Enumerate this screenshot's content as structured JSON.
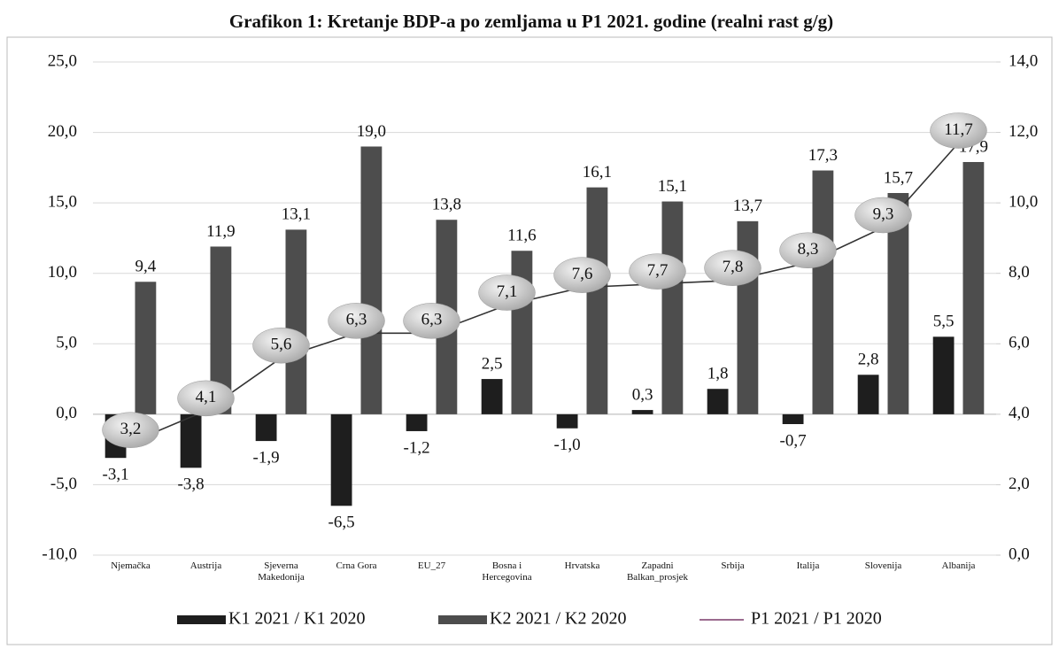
{
  "chart_data": {
    "type": "bar",
    "title": "Grafikon 1: Kretanje BDP-a po zemljama u  P1 2021. godine (realni rast g/g)",
    "categories": [
      "Njemačka",
      "Austrija",
      "Sjeverna Makedonija",
      "Crna Gora",
      "EU_27",
      "Bosna i Hercegovina",
      "Hrvatska",
      "Zapadni Balkan_prosjek",
      "Srbija",
      "Italija",
      "Slovenija",
      "Albanija"
    ],
    "series": [
      {
        "name": "K1 2021 / K1 2020",
        "color": "#1e1e1e",
        "values": [
          -3.1,
          -3.8,
          -1.9,
          -6.5,
          -1.2,
          2.5,
          -1.0,
          0.3,
          1.8,
          -0.7,
          2.8,
          5.5
        ],
        "value_labels": [
          "-3,1",
          "-3,8",
          "-1,9",
          "-6,5",
          "-1,2",
          "2,5",
          "-1,0",
          "0,3",
          "1,8",
          "-0,7",
          "2,8",
          "5,5"
        ]
      },
      {
        "name": "K2 2021 / K2 2020",
        "color": "#4d4d4d",
        "values": [
          9.4,
          11.9,
          13.1,
          19.0,
          13.8,
          11.6,
          16.1,
          15.1,
          13.7,
          17.3,
          15.7,
          17.9
        ],
        "value_labels": [
          "9,4",
          "11,9",
          "13,1",
          "19,0",
          "13,8",
          "11,6",
          "16,1",
          "15,1",
          "13,7",
          "17,3",
          "15,7",
          "17,9"
        ]
      },
      {
        "name": "P1 2021 / P1 2020",
        "color": "#333333",
        "type": "line",
        "axis": "y2",
        "values": [
          3.2,
          4.1,
          5.6,
          6.3,
          6.3,
          7.1,
          7.6,
          7.7,
          7.8,
          8.3,
          9.3,
          11.7
        ],
        "value_labels": [
          "3,2",
          "4,1",
          "5,6",
          "6,3",
          "6,3",
          "7,1",
          "7,6",
          "7,7",
          "7,8",
          "8,3",
          "9,3",
          "11,7"
        ]
      }
    ],
    "ylim": [
      -10,
      25
    ],
    "yticks": [
      {
        "value": -10,
        "label": "-10,0"
      },
      {
        "value": -5,
        "label": "-5,0"
      },
      {
        "value": 0,
        "label": "0,0"
      },
      {
        "value": 5,
        "label": "5,0"
      },
      {
        "value": 10,
        "label": "10,0"
      },
      {
        "value": 15,
        "label": "15,0"
      },
      {
        "value": 20,
        "label": "20,0"
      },
      {
        "value": 25,
        "label": "25,0"
      }
    ],
    "y2lim": [
      0,
      14
    ],
    "y2ticks": [
      {
        "value": 0,
        "label": "0,0"
      },
      {
        "value": 2,
        "label": "2,0"
      },
      {
        "value": 4,
        "label": "4,0"
      },
      {
        "value": 6,
        "label": "6,0"
      },
      {
        "value": 8,
        "label": "8,0"
      },
      {
        "value": 10,
        "label": "10,0"
      },
      {
        "value": 12,
        "label": "12,0"
      },
      {
        "value": 14,
        "label": "14,0"
      }
    ],
    "grid": true,
    "legend": "bottom"
  }
}
